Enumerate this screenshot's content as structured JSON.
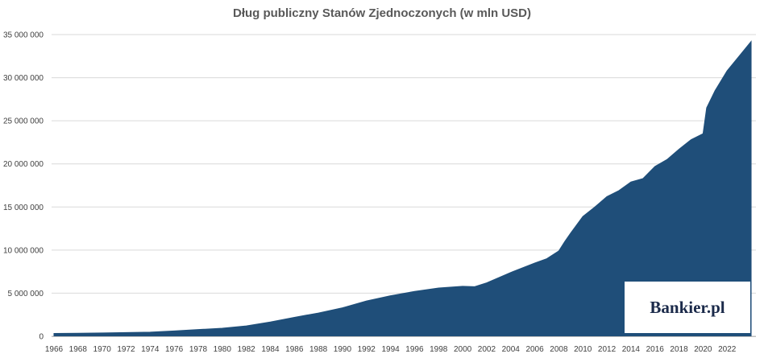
{
  "chart_data": {
    "type": "area",
    "title": "Dług publiczny Stanów Zjednoczonych (w mln USD)",
    "xlabel": "",
    "ylabel": "",
    "series": [
      {
        "x": [
          1966,
          1968,
          1970,
          1972,
          1974,
          1976,
          1978,
          1980,
          1982,
          1984,
          1986,
          1988,
          1990,
          1992,
          1994,
          1996,
          1998,
          2000,
          2001,
          2002,
          2004,
          2006,
          2007,
          2008,
          2008.5,
          2009,
          2010,
          2011,
          2012,
          2013,
          2014,
          2015,
          2016,
          2017,
          2018,
          2019,
          2020,
          2020.3,
          2021,
          2022,
          2023,
          2024
        ],
        "values": [
          330000,
          350000,
          380000,
          430000,
          480000,
          620000,
          780000,
          930000,
          1200000,
          1660000,
          2200000,
          2700000,
          3300000,
          4100000,
          4700000,
          5200000,
          5600000,
          5800000,
          5750000,
          6200000,
          7400000,
          8500000,
          9000000,
          9900000,
          11000000,
          12000000,
          13900000,
          15000000,
          16200000,
          16900000,
          17900000,
          18300000,
          19700000,
          20500000,
          21700000,
          22800000,
          23500000,
          26500000,
          28500000,
          30800000,
          32500000,
          34200000
        ]
      }
    ],
    "ylim": [
      0,
      35000000
    ],
    "xlim": [
      1965.8,
      2024.4
    ],
    "x_ticks": [
      "1966",
      "1968",
      "1970",
      "1972",
      "1974",
      "1976",
      "1978",
      "1980",
      "1982",
      "1984",
      "1986",
      "1988",
      "1990",
      "1992",
      "1994",
      "1996",
      "1998",
      "2000",
      "2002",
      "2004",
      "2006",
      "2008",
      "2010",
      "2012",
      "2014",
      "2016",
      "2018",
      "2020",
      "2022"
    ],
    "y_ticks": [
      "0",
      "5 000 000",
      "10 000 000",
      "15 000 000",
      "20 000 000",
      "25 000 000",
      "30 000 000",
      "35 000 000"
    ],
    "grid": true,
    "legend": "none",
    "colors": {
      "area": "#1f4e79",
      "grid": "#d9d9d9",
      "axis": "#bfbfbf"
    }
  },
  "logo": {
    "text": "Bankier.pl"
  }
}
